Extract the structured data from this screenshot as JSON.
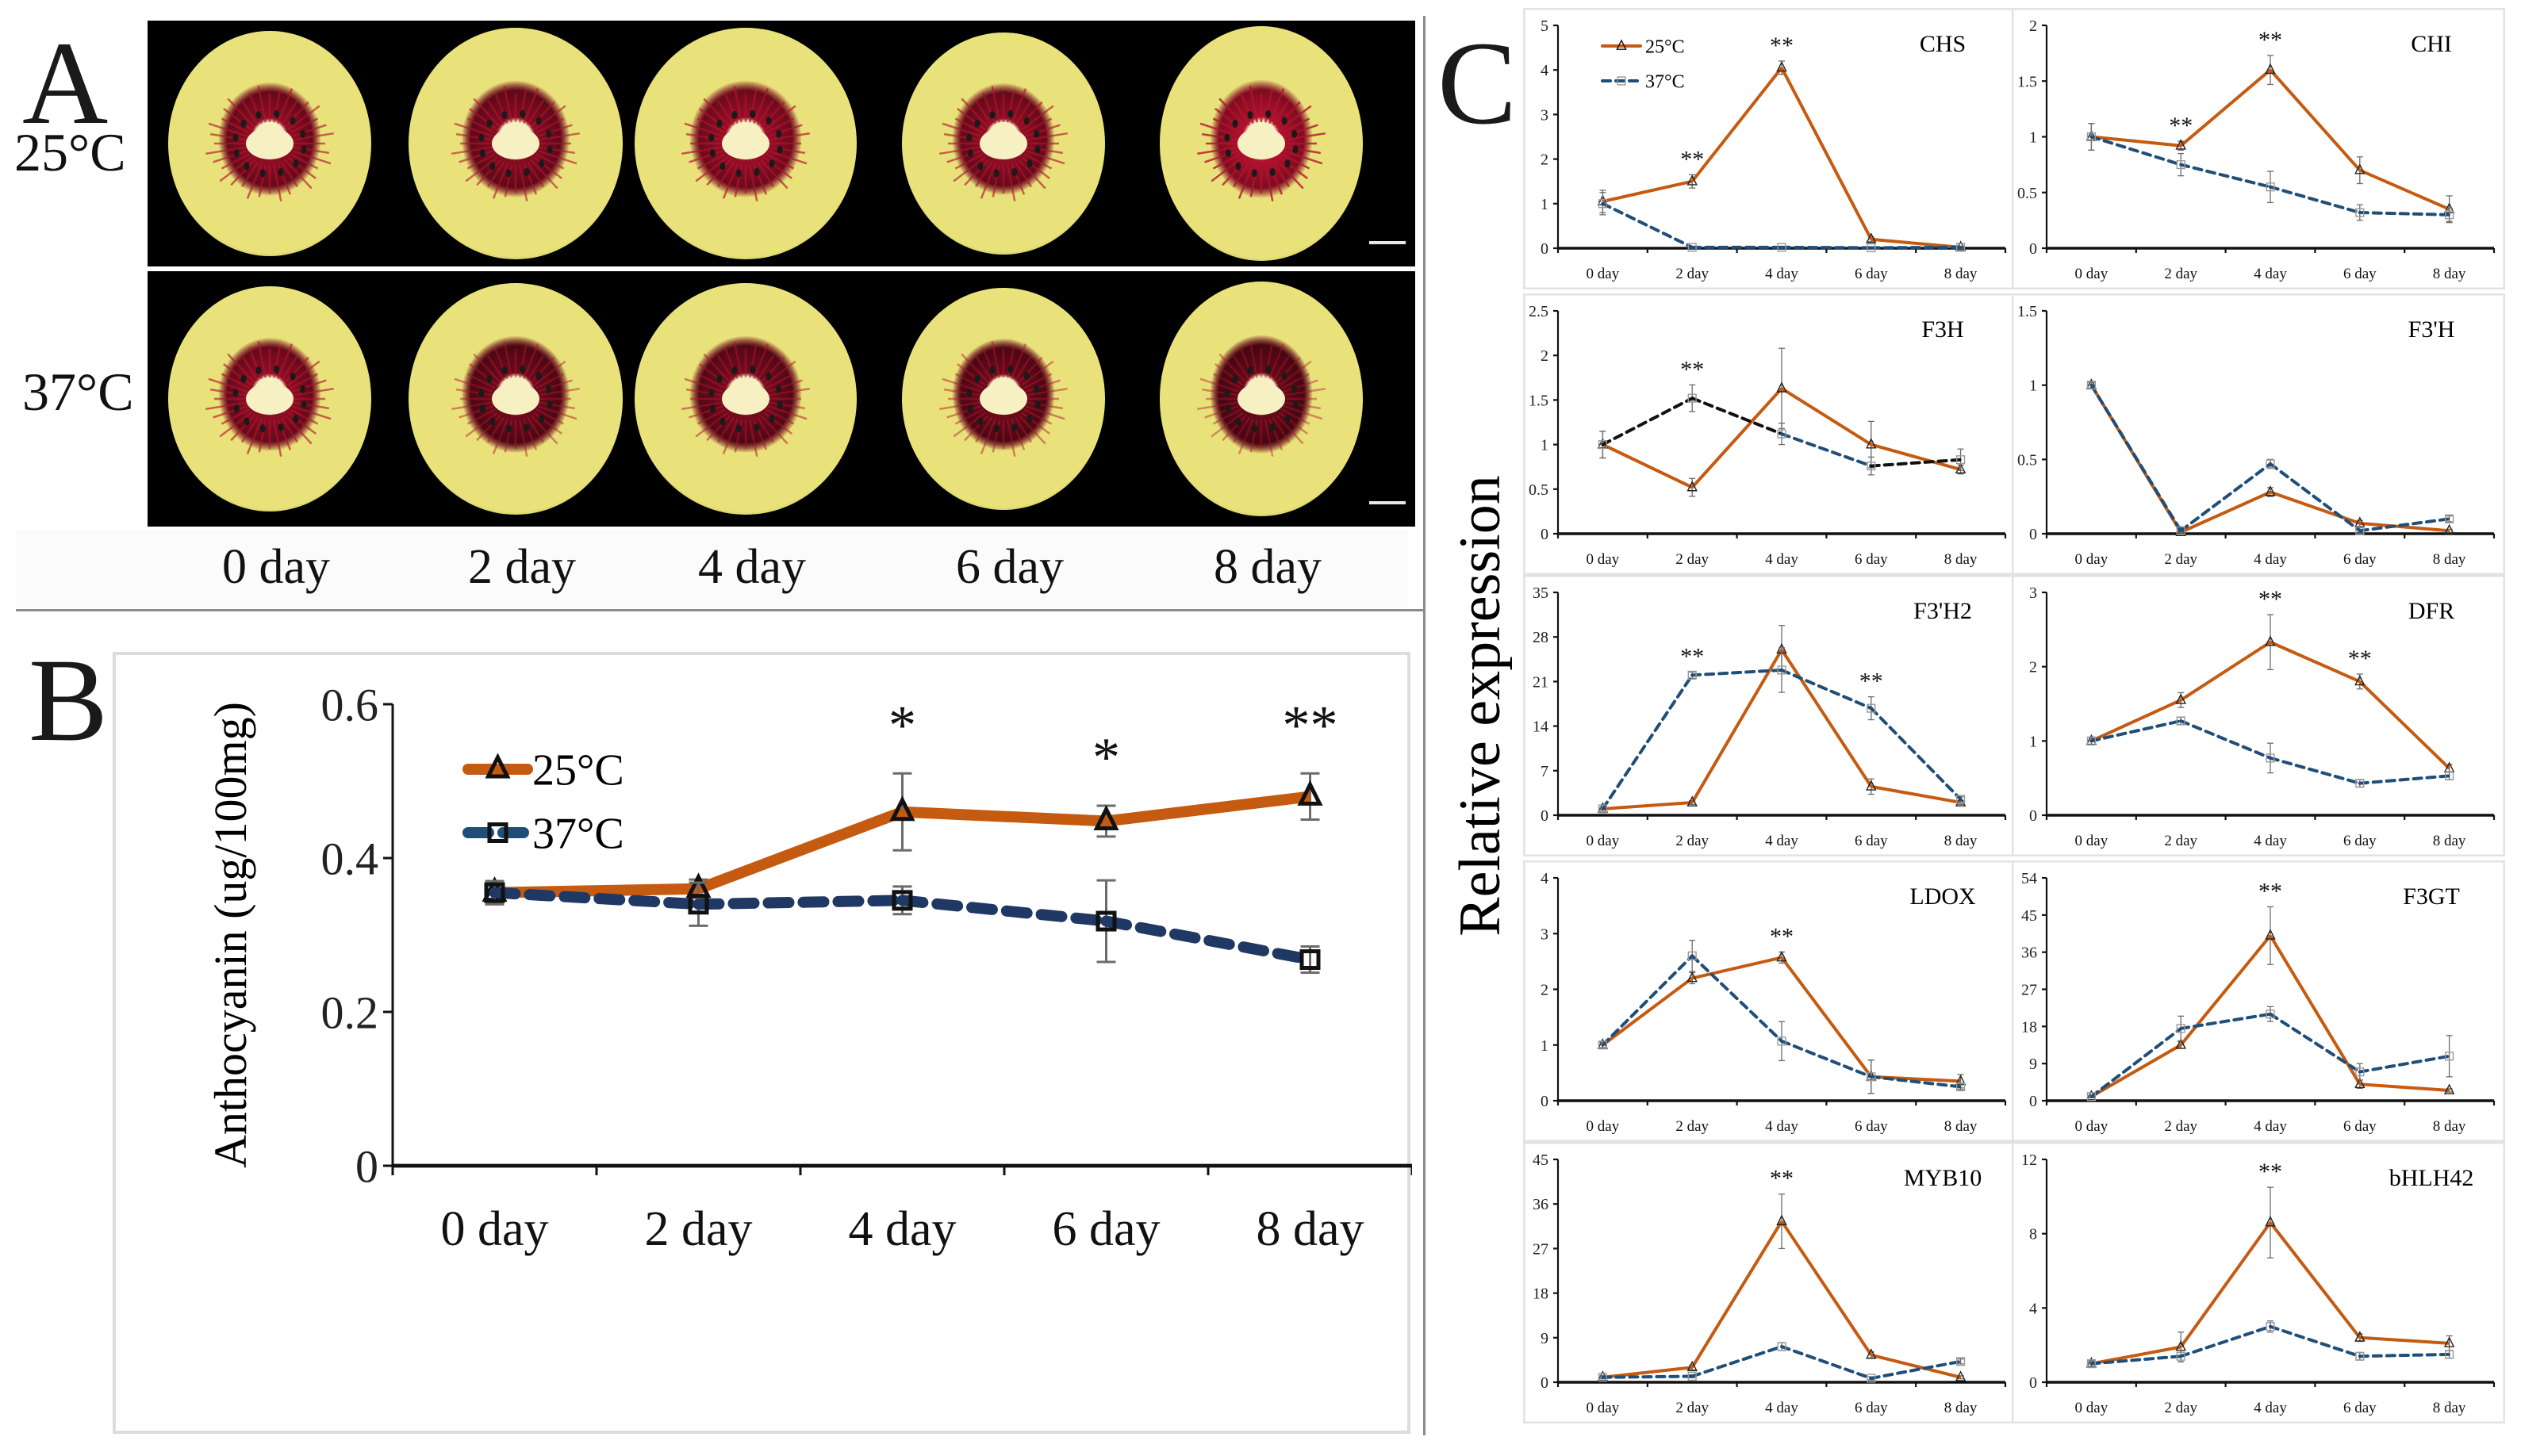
{
  "figure": {
    "panel_a": {
      "letter": "A",
      "rows": [
        {
          "label": "25°C",
          "fruit_intensity": [
            0.8,
            0.75,
            0.85,
            0.8,
            1.0
          ]
        },
        {
          "label": "37°C",
          "fruit_intensity": [
            0.8,
            0.6,
            0.65,
            0.6,
            0.55
          ]
        }
      ],
      "day_labels": [
        "0 day",
        "2 day",
        "4 day",
        "6 day",
        "8 day"
      ],
      "colors": {
        "flesh": "#e9e27a",
        "flesh_edge": "#b7b84a",
        "ring": "#b3122e",
        "core": "#f6f0c2",
        "seed": "#1a1a1a",
        "background": "#000000"
      }
    },
    "panel_b_letter": "B",
    "panel_c_letter": "C",
    "panel_c_ylabel": "Relative expression"
  },
  "chart_data": [
    {
      "id": "B",
      "type": "line",
      "title": "",
      "xlabel": "",
      "ylabel": "Anthocyanin  (ug/100mg)",
      "categories": [
        "0 day",
        "2 day",
        "4 day",
        "6 day",
        "8 day"
      ],
      "ylim": [
        0,
        0.6
      ],
      "yticks": [
        0,
        0.2,
        0.4,
        0.6
      ],
      "ytick_labels": [
        "0",
        "0.2",
        "0.4",
        "0.6"
      ],
      "legend": {
        "placement": "top-left",
        "entries": [
          "25°C",
          "37°C"
        ]
      },
      "series": [
        {
          "name": "25°C",
          "color": "#c55a11",
          "marker": "triangle",
          "dash": "solid",
          "values": [
            0.355,
            0.36,
            0.46,
            0.448,
            0.48
          ],
          "errors": [
            0.015,
            0.012,
            0.05,
            0.02,
            0.03
          ]
        },
        {
          "name": "37°C",
          "color": "#1f3864",
          "marker": "square",
          "dash": "dashed",
          "values": [
            0.355,
            0.34,
            0.345,
            0.318,
            0.268
          ],
          "errors": [
            0.015,
            0.028,
            0.018,
            0.053,
            0.017
          ]
        }
      ],
      "significance": [
        {
          "category": "4 day",
          "label": "*"
        },
        {
          "category": "6 day",
          "label": "*"
        },
        {
          "category": "8 day",
          "label": "**"
        }
      ]
    },
    {
      "id": "CHS",
      "type": "line",
      "title": "CHS",
      "categories": [
        "0 day",
        "2 day",
        "4 day",
        "6 day",
        "8 day"
      ],
      "ylim": [
        0,
        5
      ],
      "yticks": [
        0,
        1,
        2,
        3,
        4,
        5
      ],
      "ytick_labels": [
        "0",
        "1",
        "2",
        "3",
        "4",
        "5"
      ],
      "legend": {
        "placement": "top-left",
        "entries": [
          "25°C",
          "37°C"
        ]
      },
      "series": [
        {
          "name": "25°C",
          "values": [
            1.05,
            1.5,
            4.05,
            0.2,
            0.02
          ],
          "errors": [
            0.25,
            0.15,
            0.15,
            0.05,
            0.02
          ]
        },
        {
          "name": "37°C",
          "values": [
            1.0,
            0.02,
            0.02,
            0.01,
            0.02
          ],
          "errors": [
            0.25,
            0.02,
            0.02,
            0.02,
            0.02
          ]
        }
      ],
      "significance": [
        {
          "category": "2 day",
          "label": "**"
        },
        {
          "category": "4 day",
          "label": "**"
        }
      ]
    },
    {
      "id": "CHI",
      "type": "line",
      "title": "CHI",
      "categories": [
        "0 day",
        "2 day",
        "4 day",
        "6 day",
        "8 day"
      ],
      "ylim": [
        0,
        2
      ],
      "yticks": [
        0,
        0.5,
        1,
        1.5,
        2
      ],
      "ytick_labels": [
        "0",
        "0.5",
        "1",
        "1.5",
        "2"
      ],
      "series": [
        {
          "name": "25°C",
          "values": [
            1.0,
            0.92,
            1.6,
            0.7,
            0.35
          ],
          "errors": [
            0.12,
            0.04,
            0.13,
            0.12,
            0.12
          ]
        },
        {
          "name": "37°C",
          "values": [
            1.0,
            0.75,
            0.55,
            0.32,
            0.3
          ],
          "errors": [
            0.12,
            0.1,
            0.14,
            0.07,
            0.06
          ]
        }
      ],
      "significance": [
        {
          "category": "2 day",
          "label": "**"
        },
        {
          "category": "4 day",
          "label": "**"
        }
      ]
    },
    {
      "id": "F3H",
      "type": "line",
      "title": "F3H",
      "categories": [
        "0 day",
        "2 day",
        "4 day",
        "6 day",
        "8 day"
      ],
      "ylim": [
        0,
        2.5
      ],
      "yticks": [
        0,
        0.5,
        1,
        1.5,
        2,
        2.5
      ],
      "ytick_labels": [
        "0",
        "0.5",
        "1",
        "1.5",
        "2",
        "2.5"
      ],
      "series": [
        {
          "name": "25°C",
          "values": [
            1.0,
            0.52,
            1.63,
            1.0,
            0.72
          ],
          "errors": [
            0.15,
            0.1,
            0.45,
            0.26,
            0.05
          ]
        },
        {
          "name": "37°C",
          "values": [
            1.0,
            1.52,
            1.12,
            0.76,
            0.83
          ],
          "errors": [
            0.15,
            0.15,
            0.12,
            0.1,
            0.12
          ]
        }
      ],
      "significance": [
        {
          "category": "2 day",
          "label": "**"
        }
      ]
    },
    {
      "id": "F3'H",
      "type": "line",
      "title": "F3'H",
      "categories": [
        "0 day",
        "2 day",
        "4 day",
        "6 day",
        "8 day"
      ],
      "ylim": [
        0,
        1.5
      ],
      "yticks": [
        0,
        0.5,
        1,
        1.5
      ],
      "ytick_labels": [
        "0",
        "0.5",
        "1",
        "1.5"
      ],
      "series": [
        {
          "name": "25°C",
          "values": [
            1.0,
            0.01,
            0.28,
            0.07,
            0.02
          ],
          "errors": [
            0.02,
            0.01,
            0.03,
            0.02,
            0.01
          ]
        },
        {
          "name": "37°C",
          "values": [
            1.0,
            0.02,
            0.47,
            0.02,
            0.1
          ],
          "errors": [
            0.02,
            0.01,
            0.03,
            0.02,
            0.02
          ]
        }
      ],
      "significance": []
    },
    {
      "id": "F3'H2",
      "type": "line",
      "title": "F3'H2",
      "categories": [
        "0 day",
        "2 day",
        "4 day",
        "6 day",
        "8 day"
      ],
      "ylim": [
        0,
        35
      ],
      "yticks": [
        0,
        7,
        14,
        21,
        28,
        35
      ],
      "ytick_labels": [
        "0",
        "7",
        "14",
        "21",
        "28",
        "35"
      ],
      "series": [
        {
          "name": "25°C",
          "values": [
            1.0,
            2.0,
            26.0,
            4.5,
            2.0
          ],
          "errors": [
            0.2,
            0.3,
            3.8,
            1.2,
            0.3
          ]
        },
        {
          "name": "37°C",
          "values": [
            1.0,
            22.0,
            22.8,
            16.8,
            2.5
          ],
          "errors": [
            0.2,
            0.5,
            3.5,
            1.8,
            0.4
          ]
        }
      ],
      "significance": [
        {
          "category": "2 day",
          "label": "**"
        },
        {
          "category": "6 day",
          "label": "**"
        }
      ]
    },
    {
      "id": "DFR",
      "type": "line",
      "title": "DFR",
      "categories": [
        "0 day",
        "2 day",
        "4 day",
        "6 day",
        "8 day"
      ],
      "ylim": [
        0,
        3
      ],
      "yticks": [
        0,
        1,
        2,
        3
      ],
      "ytick_labels": [
        "0",
        "1",
        "2",
        "3"
      ],
      "series": [
        {
          "name": "25°C",
          "values": [
            1.0,
            1.55,
            2.33,
            1.8,
            0.63
          ],
          "errors": [
            0.05,
            0.1,
            0.37,
            0.1,
            0.05
          ]
        },
        {
          "name": "37°C",
          "values": [
            1.0,
            1.27,
            0.77,
            0.43,
            0.53
          ],
          "errors": [
            0.05,
            0.05,
            0.2,
            0.05,
            0.05
          ]
        }
      ],
      "significance": [
        {
          "category": "4 day",
          "label": "**"
        },
        {
          "category": "6 day",
          "label": "**"
        }
      ]
    },
    {
      "id": "LDOX",
      "type": "line",
      "title": "LDOX",
      "categories": [
        "0 day",
        "2 day",
        "4 day",
        "6 day",
        "8 day"
      ],
      "ylim": [
        0,
        4
      ],
      "yticks": [
        0,
        1,
        2,
        3,
        4
      ],
      "ytick_labels": [
        "0",
        "1",
        "2",
        "3",
        "4"
      ],
      "series": [
        {
          "name": "25°C",
          "values": [
            1.0,
            2.2,
            2.57,
            0.43,
            0.35
          ],
          "errors": [
            0.05,
            0.1,
            0.1,
            0.3,
            0.12
          ]
        },
        {
          "name": "37°C",
          "values": [
            1.0,
            2.6,
            1.07,
            0.43,
            0.25
          ],
          "errors": [
            0.05,
            0.28,
            0.35,
            0.3,
            0.05
          ]
        }
      ],
      "significance": [
        {
          "category": "4 day",
          "label": "**"
        }
      ]
    },
    {
      "id": "F3GT",
      "type": "line",
      "title": "F3GT",
      "categories": [
        "0 day",
        "2 day",
        "4 day",
        "6 day",
        "8 day"
      ],
      "ylim": [
        0,
        54
      ],
      "yticks": [
        0,
        9,
        18,
        27,
        36,
        45,
        54
      ],
      "ytick_labels": [
        "0",
        "9",
        "18",
        "27",
        "36",
        "45",
        "54"
      ],
      "series": [
        {
          "name": "25°C",
          "values": [
            1.0,
            13.5,
            40.0,
            4.0,
            2.5
          ],
          "errors": [
            0.3,
            0.8,
            7.0,
            1.0,
            0.4
          ]
        },
        {
          "name": "37°C",
          "values": [
            1.0,
            17.5,
            21.0,
            7.0,
            10.8
          ],
          "errors": [
            0.3,
            3.0,
            1.8,
            2.0,
            5.0
          ]
        }
      ],
      "significance": [
        {
          "category": "4 day",
          "label": "**"
        }
      ]
    },
    {
      "id": "MYB10",
      "type": "line",
      "title": "MYB10",
      "categories": [
        "0 day",
        "2 day",
        "4 day",
        "6 day",
        "8 day"
      ],
      "ylim": [
        0,
        45
      ],
      "yticks": [
        0,
        9,
        18,
        27,
        36,
        45
      ],
      "ytick_labels": [
        "0",
        "9",
        "18",
        "27",
        "36",
        "45"
      ],
      "series": [
        {
          "name": "25°C",
          "values": [
            1.0,
            3.0,
            32.5,
            5.5,
            1.0
          ],
          "errors": [
            0.3,
            0.5,
            5.5,
            0.6,
            0.3
          ]
        },
        {
          "name": "37°C",
          "values": [
            1.0,
            1.2,
            7.2,
            0.8,
            4.2
          ],
          "errors": [
            0.3,
            0.3,
            0.8,
            0.3,
            0.5
          ]
        }
      ],
      "significance": [
        {
          "category": "4 day",
          "label": "**"
        }
      ]
    },
    {
      "id": "bHLH42",
      "type": "line",
      "title": "bHLH42",
      "categories": [
        "0 day",
        "2 day",
        "4 day",
        "6 day",
        "8 day"
      ],
      "ylim": [
        0,
        12
      ],
      "yticks": [
        0,
        4,
        8,
        12
      ],
      "ytick_labels": [
        "0",
        "4",
        "8",
        "12"
      ],
      "series": [
        {
          "name": "25°C",
          "values": [
            1.0,
            1.9,
            8.6,
            2.4,
            2.1
          ],
          "errors": [
            0.15,
            0.8,
            1.9,
            0.2,
            0.4
          ]
        },
        {
          "name": "37°C",
          "values": [
            1.0,
            1.4,
            3.0,
            1.4,
            1.5
          ],
          "errors": [
            0.15,
            0.3,
            0.3,
            0.2,
            0.2
          ]
        }
      ],
      "significance": [
        {
          "category": "4 day",
          "label": "**"
        }
      ]
    }
  ],
  "styles": {
    "series_25": {
      "color": "#c55a11",
      "marker": "triangle",
      "dash": "solid"
    },
    "series_37": {
      "color": "#1f4e79",
      "marker": "square",
      "dash": "dashed"
    },
    "f3h_37_segment_color": "#111111"
  }
}
